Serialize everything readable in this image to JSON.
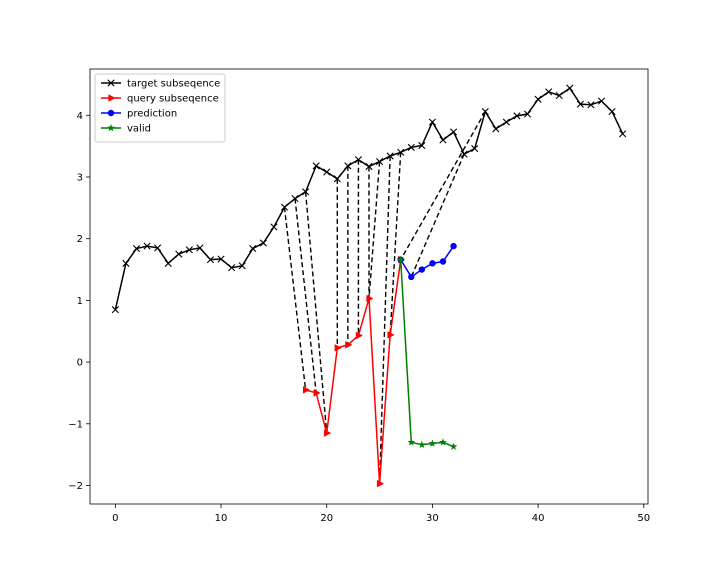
{
  "chart_data": {
    "type": "line",
    "title": "",
    "xlabel": "",
    "ylabel": "",
    "xlim": [
      -2.4,
      50.4
    ],
    "ylim": [
      -2.3,
      4.75
    ],
    "xticks": [
      0,
      10,
      20,
      30,
      40,
      50
    ],
    "yticks": [
      -2,
      -1,
      0,
      1,
      2,
      3,
      4
    ],
    "grid": false,
    "legend_position": "top-left",
    "series": [
      {
        "name": "target subseqence",
        "color": "#000000",
        "marker": "x",
        "x": [
          0,
          1,
          2,
          3,
          4,
          5,
          6,
          7,
          8,
          9,
          10,
          11,
          12,
          13,
          14,
          15,
          16,
          17,
          18,
          19,
          20,
          21,
          22,
          23,
          24,
          25,
          26,
          27,
          28,
          29,
          30,
          31,
          32,
          33,
          34,
          35,
          36,
          37,
          38,
          39,
          40,
          41,
          42,
          43,
          44,
          45,
          46,
          47,
          48
        ],
        "y": [
          0.85,
          1.6,
          1.84,
          1.88,
          1.85,
          1.6,
          1.75,
          1.82,
          1.85,
          1.66,
          1.67,
          1.53,
          1.56,
          1.84,
          1.93,
          2.19,
          2.51,
          2.65,
          2.76,
          3.18,
          3.08,
          2.97,
          3.18,
          3.28,
          3.17,
          3.25,
          3.34,
          3.4,
          3.48,
          3.51,
          3.89,
          3.6,
          3.73,
          3.37,
          3.46,
          4.06,
          3.78,
          3.89,
          3.99,
          4.02,
          4.26,
          4.38,
          4.32,
          4.44,
          4.18,
          4.17,
          4.23,
          4.06,
          3.7
        ]
      },
      {
        "name": "query subseqence",
        "color": "#ff0000",
        "marker": "triangle-right",
        "x": [
          18,
          19,
          20,
          21,
          22,
          23,
          24,
          25,
          26,
          27
        ],
        "y": [
          -0.45,
          -0.5,
          -1.15,
          0.23,
          0.28,
          0.43,
          1.03,
          -1.97,
          0.44,
          1.66
        ]
      },
      {
        "name": "prediction",
        "color": "#0000ff",
        "marker": "circle",
        "x": [
          27,
          28,
          29,
          30,
          31,
          32
        ],
        "y": [
          1.66,
          1.38,
          1.5,
          1.6,
          1.63,
          1.88
        ]
      },
      {
        "name": "valid",
        "color": "#008000",
        "marker": "star",
        "x": [
          27,
          28,
          29,
          30,
          31,
          32
        ],
        "y": [
          1.66,
          -1.3,
          -1.34,
          -1.32,
          -1.3,
          -1.37
        ]
      }
    ],
    "alignment_links": {
      "style": "dashed",
      "color": "#000000",
      "pairs": [
        [
          [
            16,
            2.51
          ],
          [
            18,
            -0.45
          ]
        ],
        [
          [
            17,
            2.65
          ],
          [
            19,
            -0.5
          ]
        ],
        [
          [
            18,
            2.76
          ],
          [
            20,
            -1.15
          ]
        ],
        [
          [
            21,
            2.97
          ],
          [
            21,
            0.23
          ]
        ],
        [
          [
            22,
            3.18
          ],
          [
            22,
            0.28
          ]
        ],
        [
          [
            23,
            3.28
          ],
          [
            23,
            0.43
          ]
        ],
        [
          [
            24,
            3.17
          ],
          [
            24,
            1.03
          ]
        ],
        [
          [
            25,
            3.25
          ],
          [
            24,
            1.03
          ]
        ],
        [
          [
            26,
            3.34
          ],
          [
            25,
            -1.97
          ]
        ],
        [
          [
            27,
            3.4
          ],
          [
            26,
            0.44
          ]
        ],
        [
          [
            35,
            4.06
          ],
          [
            27,
            1.66
          ]
        ],
        [
          [
            33,
            3.37
          ],
          [
            28,
            1.38
          ]
        ]
      ]
    }
  }
}
